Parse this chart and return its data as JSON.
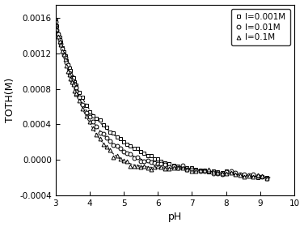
{
  "title": "",
  "xlabel": "pH",
  "ylabel": "TOTH(M)",
  "xlim": [
    3,
    10
  ],
  "ylim": [
    -0.0004,
    0.00175
  ],
  "xticks": [
    3,
    4,
    5,
    6,
    7,
    8,
    9,
    10
  ],
  "yticks": [
    -0.0004,
    0.0,
    0.0004,
    0.0008,
    0.0012,
    0.0016
  ],
  "series": [
    {
      "label": "I=0.001M",
      "marker": "s",
      "markersize": 3.5,
      "markerfacecolor": "white"
    },
    {
      "label": "I=0.01M",
      "marker": "o",
      "markersize": 3.5,
      "markerfacecolor": "white"
    },
    {
      "label": "I=0.1M",
      "marker": "^",
      "markersize": 3.5,
      "markerfacecolor": "white"
    }
  ],
  "background_color": "white",
  "legend_loc": "upper right",
  "legend_fontsize": 7.5,
  "line_color": "black",
  "linewidth": 0.7,
  "marker_color": "black",
  "markeredgewidth": 0.7
}
